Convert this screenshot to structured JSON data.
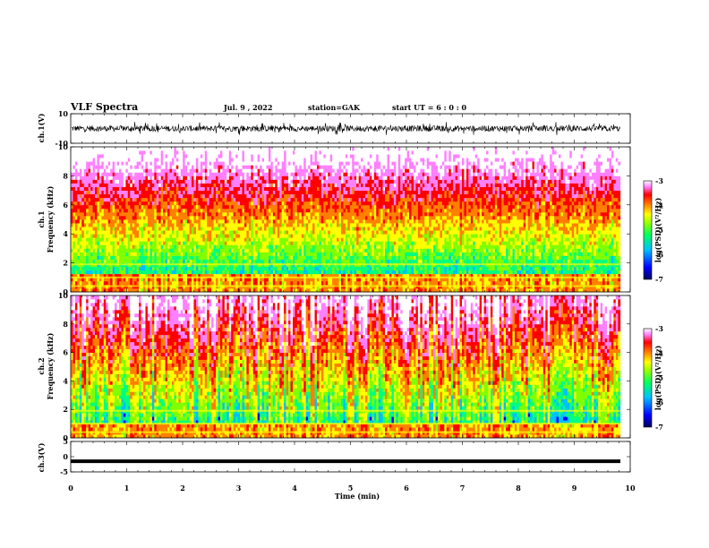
{
  "header": {
    "title": "VLF Spectra",
    "date": "Jul. 9 , 2022",
    "station": "station=GAK",
    "start": "start UT =  6 : 0 : 0"
  },
  "chart_data": [
    {
      "type": "line",
      "ylabel": "ch.1(V)",
      "ylim": [
        -10,
        10
      ],
      "yticks": [
        "10",
        "-10"
      ],
      "description_series": "ch.1 waveform oscillating roughly between -5 and 5 V around 0"
    },
    {
      "type": "heatmap",
      "ylabel": "ch.1\nFrequency (kHz)",
      "ylabel_line1": "ch.1",
      "ylabel_line2": "Frequency (kHz)",
      "ylim": [
        0,
        10
      ],
      "yticks": [
        "0",
        "2",
        "4",
        "6",
        "8",
        "10"
      ],
      "colorbar": {
        "label": "log(PSD)(V²/Hz)",
        "range": [
          -7,
          -3
        ],
        "ticks": [
          "-3",
          "-4",
          "-5",
          "-6",
          "-7"
        ]
      }
    },
    {
      "type": "heatmap",
      "ylabel_line1": "ch.2",
      "ylabel_line2": "Frequency (kHz)",
      "ylim": [
        0,
        10
      ],
      "yticks": [
        "0",
        "2",
        "4",
        "6",
        "8",
        "10"
      ],
      "colorbar": {
        "label": "log(PSD)(V²/Hz)",
        "range": [
          -7,
          -3
        ],
        "ticks": [
          "-3",
          "-4",
          "-5",
          "-6",
          "-7"
        ]
      }
    },
    {
      "type": "line",
      "ylabel": "ch.3(V)",
      "ylim": [
        -5,
        5
      ],
      "yticks": [
        "5",
        "0",
        "-5"
      ],
      "level": -1.5
    }
  ],
  "xaxis": {
    "label": "Time (min)",
    "xlim": [
      0,
      10
    ],
    "ticks": [
      "0",
      "1",
      "2",
      "3",
      "4",
      "5",
      "6",
      "7",
      "8",
      "9",
      "10"
    ],
    "data_end": 9.82
  },
  "colors": {
    "scale": [
      "#000080",
      "#0000ff",
      "#00c0ff",
      "#00ff80",
      "#80ff00",
      "#ffff00",
      "#ff8000",
      "#ff0000",
      "#ff80ff",
      "#ffffff"
    ]
  }
}
